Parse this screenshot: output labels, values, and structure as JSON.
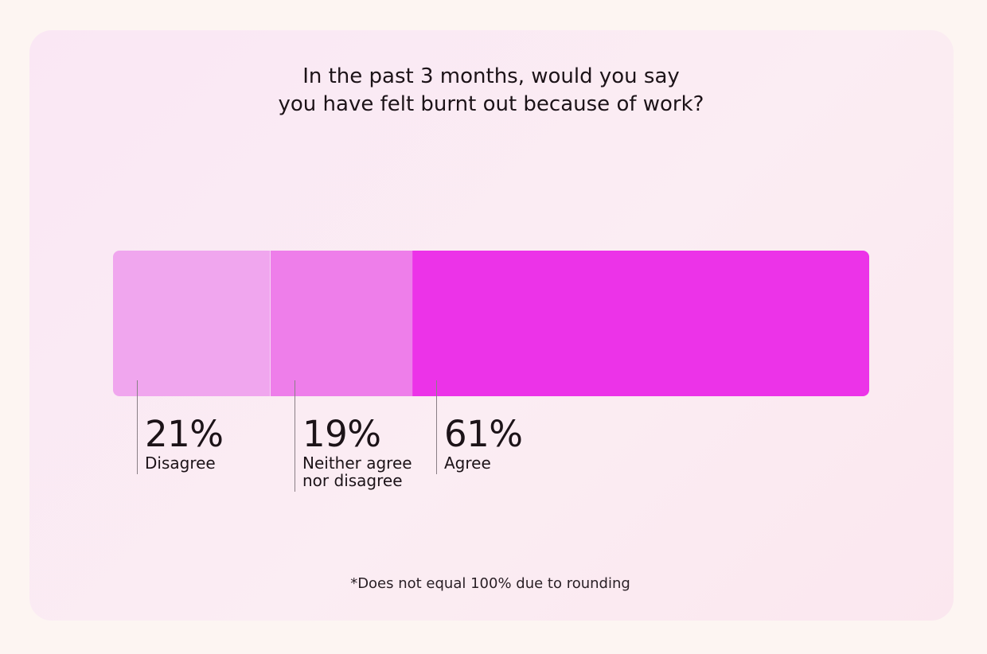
{
  "chart_data": {
    "type": "bar",
    "orientation": "horizontal-stacked",
    "title_lines": [
      "In the past 3 months, would you say",
      "you have felt burnt out because of work?"
    ],
    "categories": [
      "Disagree",
      "Neither agree nor disagree",
      "Agree"
    ],
    "values": [
      21,
      19,
      61
    ],
    "value_labels": [
      "21%",
      "19%",
      "61%"
    ],
    "category_label_lines": [
      [
        "Disagree"
      ],
      [
        "Neither agree",
        "nor disagree"
      ],
      [
        "Agree"
      ]
    ],
    "colors": [
      "#f0a6ee",
      "#ee7eea",
      "#ec33e8"
    ],
    "unit": "%",
    "footnote": "*Does not equal 100% due to rounding"
  }
}
